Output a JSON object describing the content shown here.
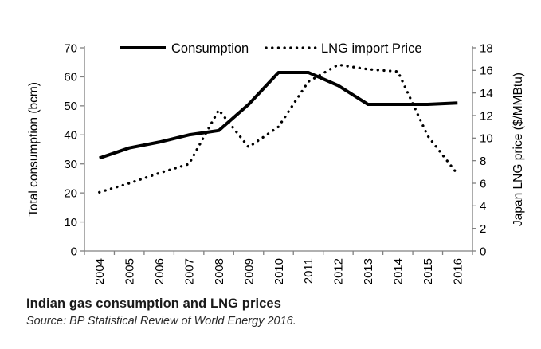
{
  "chart_data": {
    "type": "line",
    "categories": [
      "2004",
      "2005",
      "2006",
      "2007",
      "2008",
      "2009",
      "2010",
      "2011",
      "2012",
      "2013",
      "2014",
      "2015",
      "2016"
    ],
    "series": [
      {
        "name": "Consumption",
        "axis": "left",
        "style": "solid",
        "color": "#000000",
        "values": [
          32,
          35.5,
          37.5,
          40,
          41.5,
          50.5,
          61.5,
          61.5,
          57,
          50.5,
          50.5,
          50.5,
          51
        ]
      },
      {
        "name": "LNG import Price",
        "axis": "right",
        "style": "dotted",
        "color": "#000000",
        "values": [
          5.2,
          6.0,
          6.9,
          7.7,
          12.5,
          9.2,
          11.0,
          15.0,
          16.5,
          16.1,
          15.9,
          10.2,
          6.8
        ]
      }
    ],
    "left_axis": {
      "label": "Total consumption (bcm)",
      "min": 0,
      "max": 70,
      "step": 10
    },
    "right_axis": {
      "label": "Japan LNG price ($/MMBtu)",
      "min": 0,
      "max": 18,
      "step": 2
    },
    "x_axis": {
      "tick_mode": "between-categories",
      "label_rotation": -90
    },
    "legend_position": "top",
    "grid": false,
    "colors": {
      "series": "#000000",
      "axis_line": "#808080",
      "text": "#000000",
      "background": "#ffffff"
    }
  },
  "title": "Indian gas consumption and LNG prices",
  "source": "Source: BP Statistical Review of World Energy 2016."
}
